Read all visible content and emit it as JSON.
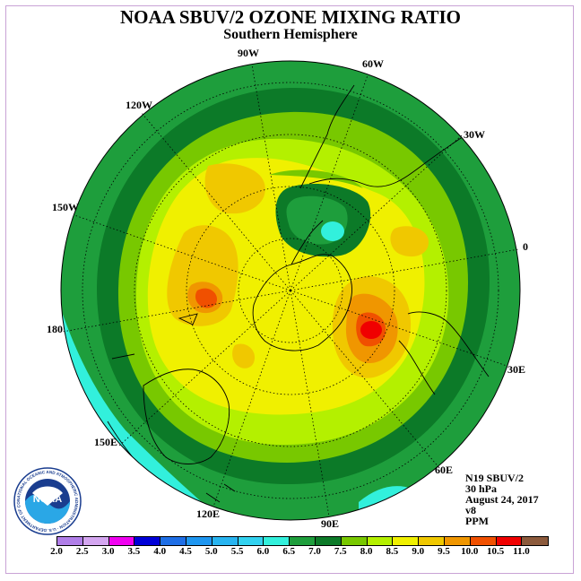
{
  "title": "NOAA SBUV/2 OZONE MIXING RATIO",
  "subtitle": "Southern Hemisphere",
  "longitude_labels": [
    "90W",
    "60W",
    "30W",
    "0",
    "30E",
    "60E",
    "90E",
    "120E",
    "150E",
    "180",
    "150W",
    "120W"
  ],
  "info": {
    "satellite": "N19 SBUV/2",
    "level": "30 hPa",
    "date": "August 24, 2017",
    "version": "v8",
    "units": "PPM"
  },
  "logo": {
    "text": "NOAA",
    "ring_text": "NATIONAL OCEANIC AND ATMOSPHERIC ADMINISTRATION · U.S. DEPARTMENT OF COMMERCE"
  },
  "colorbar": {
    "ticks": [
      "2.0",
      "2.5",
      "3.0",
      "3.5",
      "4.0",
      "4.5",
      "5.0",
      "5.5",
      "6.0",
      "6.5",
      "7.0",
      "7.5",
      "8.0",
      "8.5",
      "9.0",
      "9.5",
      "10.0",
      "10.5",
      "11.0"
    ],
    "colors": [
      "#b07ee8",
      "#d4a6f0",
      "#f000f0",
      "#0000d8",
      "#1e6ee6",
      "#1e96f0",
      "#28b4f0",
      "#32d2f0",
      "#32f0dc",
      "#1e9e3c",
      "#0c7a28",
      "#78c800",
      "#b4f000",
      "#f0f000",
      "#f0c800",
      "#f09600",
      "#f05000",
      "#f00000",
      "#8c5a3c"
    ]
  },
  "field_colors": {
    "bin_5_5_6_0": "#32f0dc",
    "bin_6_0_6_5": "#1e9e3c",
    "bin_6_5_7_0": "#0c7a28",
    "bin_7_0_7_5": "#78c800",
    "bin_7_5_8_0": "#b4f000",
    "bin_8_0_8_5": "#f0f000",
    "bin_8_5_9_0": "#f0c800",
    "bin_9_0_9_5": "#f09600",
    "bin_9_5_10_0": "#f05000",
    "bin_10_0_10_5": "#f00000"
  }
}
